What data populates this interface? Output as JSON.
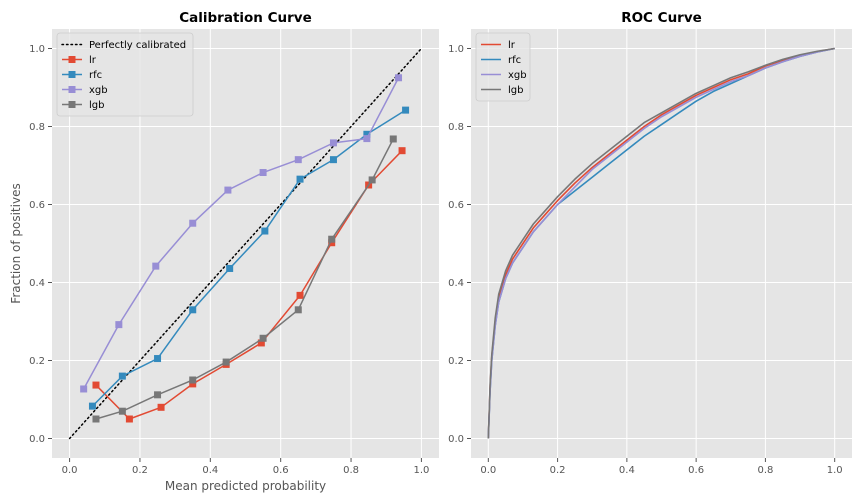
{
  "colors": {
    "lr": "#E24A33",
    "rfc": "#348ABD",
    "xgb": "#988ED5",
    "lgb": "#777777",
    "perfect": "#000000",
    "axes_bg": "#E5E5E5",
    "grid": "#FFFFFF"
  },
  "chart_data": [
    {
      "type": "line",
      "title": "Calibration Curve",
      "xlabel": "Mean predicted probability",
      "ylabel": "Fraction of positives",
      "xlim": [
        -0.05,
        1.05
      ],
      "ylim": [
        -0.05,
        1.05
      ],
      "xticks": [
        "0.0",
        "0.2",
        "0.4",
        "0.6",
        "0.8",
        "1.0"
      ],
      "yticks": [
        "0.0",
        "0.2",
        "0.4",
        "0.6",
        "0.8",
        "1.0"
      ],
      "grid": true,
      "legend": "top-left",
      "reference": {
        "name": "Perfectly calibrated",
        "x": [
          0,
          1
        ],
        "y": [
          0,
          1
        ],
        "style": "dotted"
      },
      "series": [
        {
          "name": "lr",
          "x": [
            0.075,
            0.17,
            0.26,
            0.35,
            0.445,
            0.545,
            0.655,
            0.745,
            0.85,
            0.945
          ],
          "y": [
            0.137,
            0.05,
            0.08,
            0.14,
            0.19,
            0.245,
            0.367,
            0.502,
            0.65,
            0.738
          ]
        },
        {
          "name": "rfc",
          "x": [
            0.065,
            0.15,
            0.25,
            0.35,
            0.455,
            0.555,
            0.655,
            0.75,
            0.845,
            0.955
          ],
          "y": [
            0.083,
            0.16,
            0.205,
            0.33,
            0.436,
            0.532,
            0.665,
            0.715,
            0.78,
            0.842
          ]
        },
        {
          "name": "xgb",
          "x": [
            0.04,
            0.14,
            0.245,
            0.35,
            0.45,
            0.55,
            0.65,
            0.75,
            0.845,
            0.935
          ],
          "y": [
            0.127,
            0.292,
            0.442,
            0.552,
            0.637,
            0.682,
            0.715,
            0.758,
            0.769,
            0.925
          ]
        },
        {
          "name": "lgb",
          "x": [
            0.075,
            0.15,
            0.25,
            0.35,
            0.445,
            0.55,
            0.65,
            0.745,
            0.86,
            0.92
          ],
          "y": [
            0.05,
            0.07,
            0.112,
            0.15,
            0.196,
            0.257,
            0.33,
            0.511,
            0.663,
            0.768
          ]
        }
      ]
    },
    {
      "type": "line",
      "title": "ROC Curve",
      "xlabel": "",
      "ylabel": "",
      "xlim": [
        -0.05,
        1.05
      ],
      "ylim": [
        -0.05,
        1.05
      ],
      "xticks": [
        "0.0",
        "0.2",
        "0.4",
        "0.6",
        "0.8",
        "1.0"
      ],
      "yticks": [
        "0.0",
        "0.2",
        "0.4",
        "0.6",
        "0.8",
        "1.0"
      ],
      "grid": true,
      "legend": "top-left",
      "series": [
        {
          "name": "lr",
          "x": [
            0,
            0.005,
            0.01,
            0.02,
            0.03,
            0.05,
            0.07,
            0.1,
            0.13,
            0.16,
            0.2,
            0.25,
            0.3,
            0.35,
            0.4,
            0.45,
            0.5,
            0.55,
            0.6,
            0.65,
            0.7,
            0.75,
            0.8,
            0.85,
            0.9,
            0.95,
            1.0
          ],
          "y": [
            0,
            0.13,
            0.21,
            0.3,
            0.36,
            0.42,
            0.46,
            0.5,
            0.54,
            0.57,
            0.61,
            0.655,
            0.695,
            0.73,
            0.765,
            0.8,
            0.83,
            0.855,
            0.88,
            0.9,
            0.92,
            0.935,
            0.955,
            0.97,
            0.982,
            0.992,
            1.0
          ]
        },
        {
          "name": "rfc",
          "x": [
            0,
            0.005,
            0.01,
            0.02,
            0.03,
            0.05,
            0.07,
            0.1,
            0.13,
            0.16,
            0.2,
            0.25,
            0.3,
            0.35,
            0.4,
            0.45,
            0.5,
            0.55,
            0.6,
            0.65,
            0.7,
            0.75,
            0.8,
            0.85,
            0.9,
            0.95,
            1.0
          ],
          "y": [
            0,
            0.12,
            0.2,
            0.29,
            0.35,
            0.41,
            0.45,
            0.49,
            0.53,
            0.56,
            0.6,
            0.635,
            0.67,
            0.705,
            0.74,
            0.775,
            0.805,
            0.835,
            0.865,
            0.89,
            0.91,
            0.93,
            0.95,
            0.966,
            0.98,
            0.991,
            1.0
          ]
        },
        {
          "name": "xgb",
          "x": [
            0,
            0.005,
            0.01,
            0.02,
            0.03,
            0.05,
            0.07,
            0.1,
            0.13,
            0.16,
            0.2,
            0.25,
            0.3,
            0.35,
            0.4,
            0.45,
            0.5,
            0.55,
            0.6,
            0.65,
            0.7,
            0.75,
            0.8,
            0.85,
            0.9,
            0.95,
            1.0
          ],
          "y": [
            0,
            0.12,
            0.2,
            0.29,
            0.35,
            0.41,
            0.45,
            0.49,
            0.53,
            0.56,
            0.6,
            0.645,
            0.69,
            0.725,
            0.76,
            0.795,
            0.825,
            0.85,
            0.875,
            0.895,
            0.915,
            0.93,
            0.95,
            0.966,
            0.98,
            0.991,
            1.0
          ]
        },
        {
          "name": "lgb",
          "x": [
            0,
            0.005,
            0.01,
            0.02,
            0.03,
            0.05,
            0.07,
            0.1,
            0.13,
            0.16,
            0.2,
            0.25,
            0.3,
            0.35,
            0.4,
            0.45,
            0.5,
            0.55,
            0.6,
            0.65,
            0.7,
            0.75,
            0.8,
            0.85,
            0.9,
            0.95,
            1.0
          ],
          "y": [
            0,
            0.135,
            0.215,
            0.31,
            0.37,
            0.43,
            0.47,
            0.51,
            0.55,
            0.58,
            0.62,
            0.665,
            0.705,
            0.74,
            0.775,
            0.81,
            0.835,
            0.86,
            0.885,
            0.905,
            0.925,
            0.94,
            0.957,
            0.972,
            0.984,
            0.993,
            1.0
          ]
        }
      ]
    }
  ]
}
